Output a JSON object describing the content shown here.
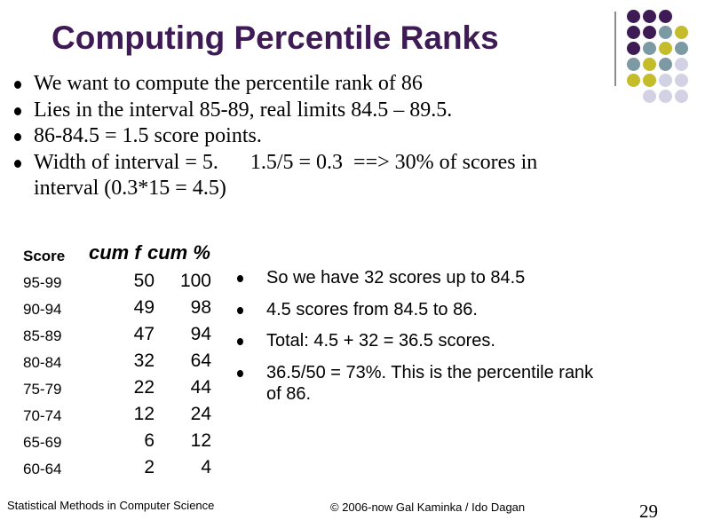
{
  "slide": {
    "title": "Computing Percentile Ranks",
    "bullets": [
      "We want to compute the percentile rank of 86",
      "Lies in the interval 85-89, real limits 84.5 – 89.5.",
      "86-84.5 = 1.5 score points.",
      "Width of interval = 5.      1.5/5 = 0.3  ==> 30% of scores in"
    ],
    "bullet_continuation": "interval (0.3*15 = 4.5)",
    "table": {
      "header_score": "Score",
      "header_cum": "cum f",
      "header_cum_pct": "cum %",
      "rows": [
        {
          "score": "95-99",
          "cum": "50",
          "pct": "100"
        },
        {
          "score": "90-94",
          "cum": "49",
          "pct": "98"
        },
        {
          "score": "85-89",
          "cum": "47",
          "pct": "94"
        },
        {
          "score": "80-84",
          "cum": "32",
          "pct": "64"
        },
        {
          "score": "75-79",
          "cum": "22",
          "pct": "44"
        },
        {
          "score": "70-74",
          "cum": "12",
          "pct": "24"
        },
        {
          "score": "65-69",
          "cum": "6",
          "pct": "12"
        },
        {
          "score": "60-64",
          "cum": "2",
          "pct": "4"
        }
      ]
    },
    "right_bullets": [
      "So we have 32 scores  up to 84.5",
      "4.5 scores from 84.5 to 86.",
      "Total: 4.5 + 32 = 36.5 scores.",
      "36.5/50 = 73%.  This is the percentile rank"
    ],
    "right_continuation": "of 86.",
    "footer_left": "Statistical Methods in Computer Science",
    "footer_mid": "© 2006-now  Gal Kaminka / Ido Dagan",
    "page_number": "29"
  },
  "theme": {
    "title_color": "#3f1b55",
    "dot_colors": {
      "purple": "#3f1b55",
      "teal": "#7c9aa3",
      "olive": "#c4bc2a",
      "lavender": "#d3d2e5"
    }
  }
}
